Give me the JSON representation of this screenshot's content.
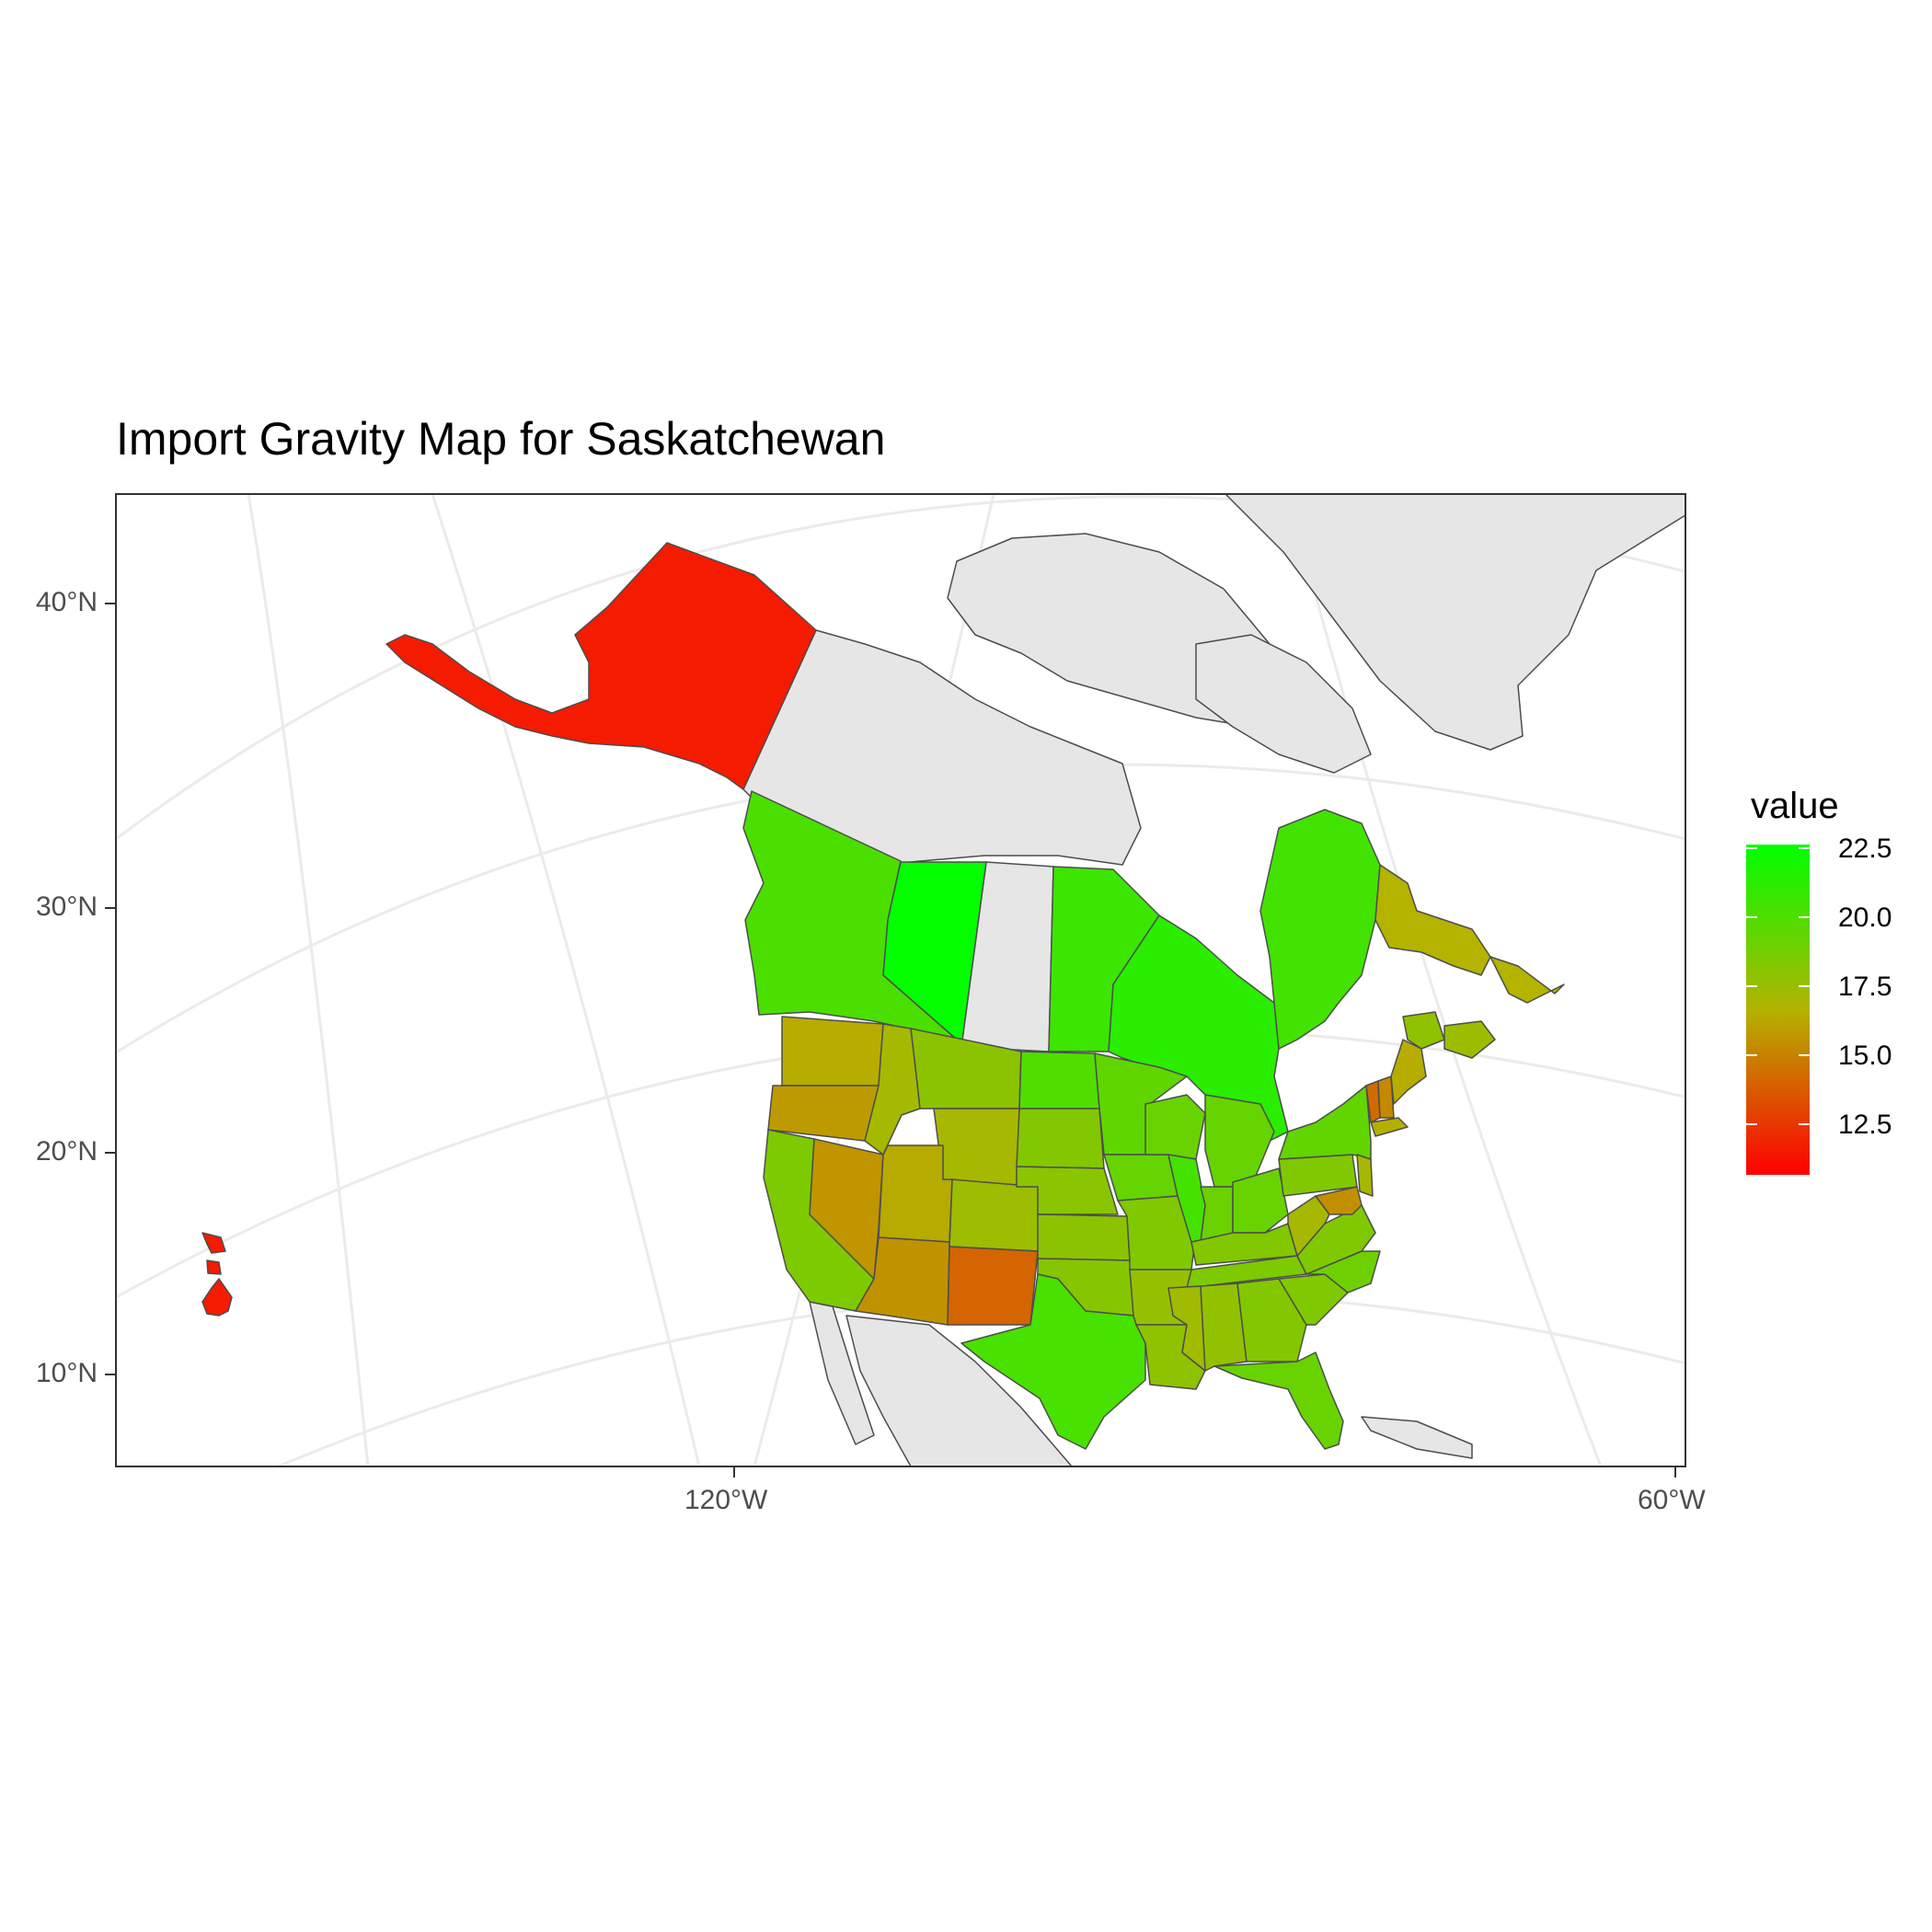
{
  "chart": {
    "title": "Import Gravity Map for Saskatchewan",
    "legend_title": "value"
  },
  "axes": {
    "y_labels": [
      "40°N",
      "30°N",
      "20°N",
      "10°N"
    ],
    "x_labels": [
      "120°W",
      "60°W"
    ]
  },
  "legend": {
    "breaks": [
      "22.5",
      "20.0",
      "17.5",
      "15.0",
      "12.5"
    ],
    "colors": {
      "low": "#ff0000",
      "mid": "#b3b300",
      "high": "#00ff00"
    },
    "range": [
      11.0,
      23.0
    ]
  },
  "colors": {
    "land_no_data": "#e6e6e6",
    "border": "#4d4d4d",
    "graticule": "#ebebeb",
    "panel_border": "#333333"
  },
  "chart_data": {
    "type": "heatmap",
    "subtype": "choropleth",
    "title": "Import Gravity Map for Saskatchewan",
    "legend_title": "value",
    "legend_range": [
      11.0,
      23.0
    ],
    "regions": [
      {
        "name": "Alaska",
        "value": 11.9
      },
      {
        "name": "Hawaii",
        "value": 11.9
      },
      {
        "name": "British Columbia",
        "value": 20.5
      },
      {
        "name": "Alberta",
        "value": 22.9
      },
      {
        "name": "Manitoba",
        "value": 21.0
      },
      {
        "name": "Ontario",
        "value": 21.6
      },
      {
        "name": "Quebec",
        "value": 20.8
      },
      {
        "name": "Newfoundland and Labrador",
        "value": 17.0
      },
      {
        "name": "New Brunswick",
        "value": 18.2
      },
      {
        "name": "Nova Scotia",
        "value": 17.8
      },
      {
        "name": "Washington",
        "value": 16.8
      },
      {
        "name": "Oregon",
        "value": 16.2
      },
      {
        "name": "California",
        "value": 18.8
      },
      {
        "name": "Nevada",
        "value": 16.0
      },
      {
        "name": "Idaho",
        "value": 17.5
      },
      {
        "name": "Montana",
        "value": 18.3
      },
      {
        "name": "Wyoming",
        "value": 17.4
      },
      {
        "name": "Utah",
        "value": 16.7
      },
      {
        "name": "Colorado",
        "value": 17.7
      },
      {
        "name": "Arizona",
        "value": 15.9
      },
      {
        "name": "New Mexico",
        "value": 14.4
      },
      {
        "name": "North Dakota",
        "value": 20.3
      },
      {
        "name": "South Dakota",
        "value": 18.6
      },
      {
        "name": "Nebraska",
        "value": 18.4
      },
      {
        "name": "Kansas",
        "value": 18.3
      },
      {
        "name": "Oklahoma",
        "value": 18.5
      },
      {
        "name": "Texas",
        "value": 20.6
      },
      {
        "name": "Minnesota",
        "value": 19.8
      },
      {
        "name": "Iowa",
        "value": 19.6
      },
      {
        "name": "Missouri",
        "value": 18.7
      },
      {
        "name": "Arkansas",
        "value": 18.0
      },
      {
        "name": "Louisiana",
        "value": 18.2
      },
      {
        "name": "Wisconsin",
        "value": 19.5
      },
      {
        "name": "Illinois",
        "value": 20.7
      },
      {
        "name": "Michigan",
        "value": 19.6
      },
      {
        "name": "Indiana",
        "value": 19.4
      },
      {
        "name": "Ohio",
        "value": 19.5
      },
      {
        "name": "Kentucky",
        "value": 18.6
      },
      {
        "name": "Tennessee",
        "value": 18.8
      },
      {
        "name": "Mississippi",
        "value": 17.6
      },
      {
        "name": "Alabama",
        "value": 18.1
      },
      {
        "name": "Georgia",
        "value": 18.6
      },
      {
        "name": "Florida",
        "value": 19.5
      },
      {
        "name": "South Carolina",
        "value": 18.7
      },
      {
        "name": "North Carolina",
        "value": 19.3
      },
      {
        "name": "Virginia",
        "value": 18.7
      },
      {
        "name": "West Virginia",
        "value": 17.4
      },
      {
        "name": "Pennsylvania",
        "value": 18.7
      },
      {
        "name": "New York",
        "value": 19.7
      },
      {
        "name": "Maryland",
        "value": 15.8
      },
      {
        "name": "New Jersey",
        "value": 17.4
      },
      {
        "name": "Vermont",
        "value": 14.6
      },
      {
        "name": "New Hampshire",
        "value": 15.6
      },
      {
        "name": "Maine",
        "value": 16.8
      },
      {
        "name": "Massachusetts",
        "value": 16.9
      }
    ]
  }
}
